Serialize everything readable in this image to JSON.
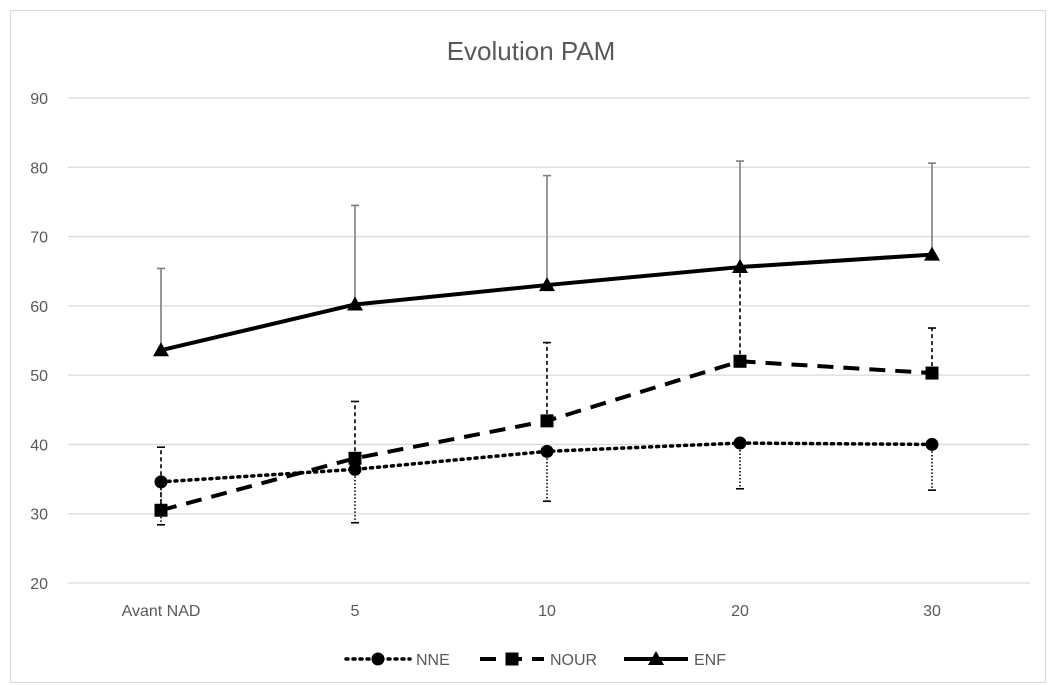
{
  "chart_data": {
    "type": "line",
    "title": "Evolution PAM",
    "xlabel": "",
    "ylabel": "",
    "categories": [
      "Avant NAD",
      "5",
      "10",
      "20",
      "30"
    ],
    "ylim": [
      20,
      90
    ],
    "yticks": [
      20,
      30,
      40,
      50,
      60,
      70,
      80,
      90
    ],
    "grid": true,
    "legend_position": "bottom",
    "series": [
      {
        "name": "NNE",
        "marker": "circle",
        "line_style": "dotted",
        "color": "#000000",
        "values": [
          34.6,
          36.4,
          39.0,
          40.2,
          40.0
        ],
        "error_lower": [
          28.4,
          28.7,
          31.8,
          33.6,
          33.4
        ],
        "error_upper": [
          null,
          null,
          null,
          null,
          null
        ]
      },
      {
        "name": "NOUR",
        "marker": "square",
        "line_style": "dashed",
        "color": "#000000",
        "values": [
          30.5,
          38.0,
          43.4,
          52.0,
          50.3
        ],
        "error_lower": [
          null,
          null,
          null,
          null,
          null
        ],
        "error_upper": [
          39.6,
          46.2,
          54.7,
          65.6,
          56.8
        ]
      },
      {
        "name": "ENF",
        "marker": "triangle",
        "line_style": "solid",
        "color": "#000000",
        "values": [
          53.6,
          60.2,
          63.0,
          65.6,
          67.4
        ],
        "error_lower": [
          null,
          null,
          null,
          null,
          null
        ],
        "error_upper": [
          65.4,
          74.5,
          78.8,
          80.9,
          80.6
        ]
      }
    ]
  },
  "colors": {
    "gridline": "#d9d9d9",
    "text": "#595959",
    "error_bar": "#7f7f7f",
    "series": "#000000"
  }
}
